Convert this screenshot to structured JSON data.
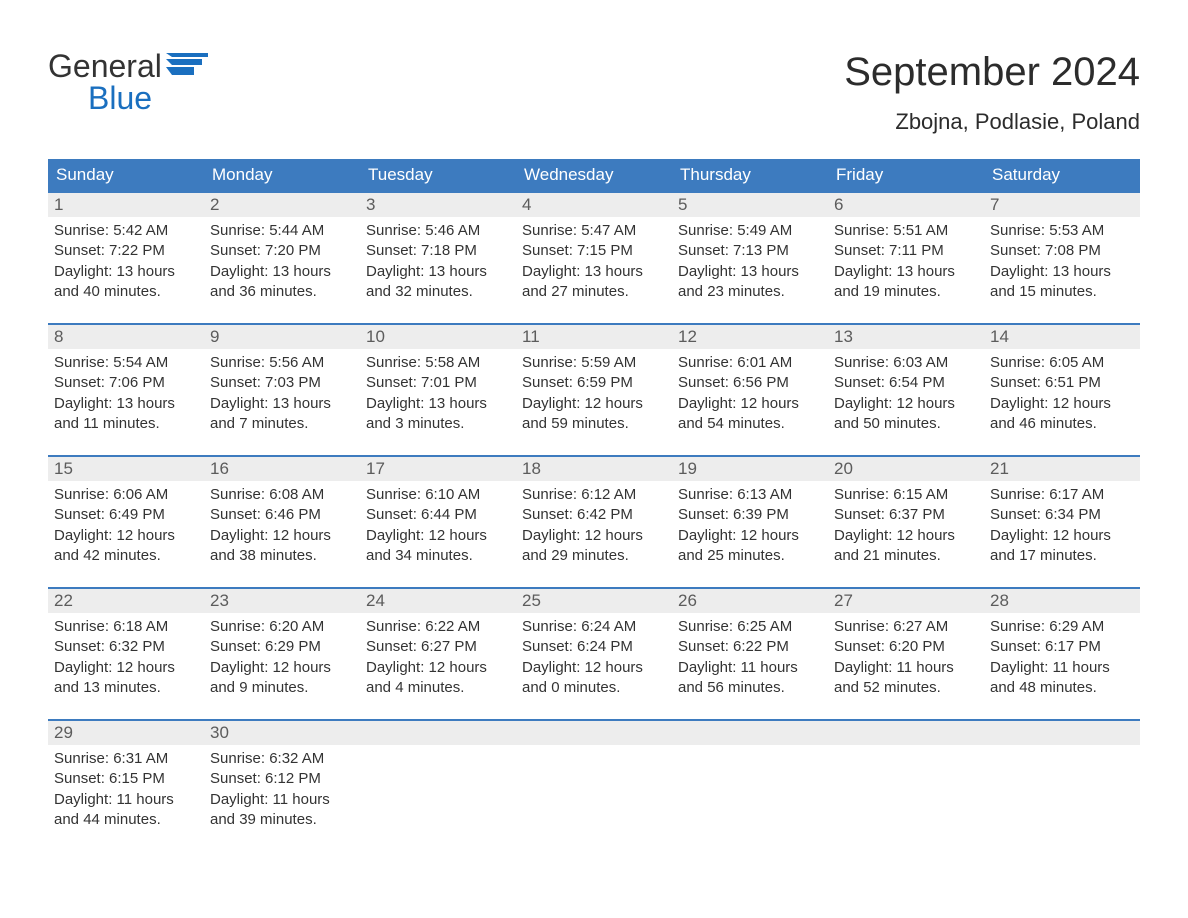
{
  "logo": {
    "word1": "General",
    "word2": "Blue",
    "icon_color": "#1a6fbf",
    "word1_color": "#333333",
    "word2_color": "#1a6fbf"
  },
  "title": "September 2024",
  "subtitle": "Zbojna, Podlasie, Poland",
  "colors": {
    "header_bg": "#3d7bbf",
    "header_fg": "#ffffff",
    "daynum_bg": "#ededed",
    "daynum_fg": "#5c5c5c",
    "body_text": "#333333",
    "week_border": "#3d7bbf",
    "page_bg": "#ffffff"
  },
  "weekdays": [
    "Sunday",
    "Monday",
    "Tuesday",
    "Wednesday",
    "Thursday",
    "Friday",
    "Saturday"
  ],
  "weeks": [
    [
      {
        "day": "1",
        "sunrise": "Sunrise: 5:42 AM",
        "sunset": "Sunset: 7:22 PM",
        "daylight": "Daylight: 13 hours and 40 minutes."
      },
      {
        "day": "2",
        "sunrise": "Sunrise: 5:44 AM",
        "sunset": "Sunset: 7:20 PM",
        "daylight": "Daylight: 13 hours and 36 minutes."
      },
      {
        "day": "3",
        "sunrise": "Sunrise: 5:46 AM",
        "sunset": "Sunset: 7:18 PM",
        "daylight": "Daylight: 13 hours and 32 minutes."
      },
      {
        "day": "4",
        "sunrise": "Sunrise: 5:47 AM",
        "sunset": "Sunset: 7:15 PM",
        "daylight": "Daylight: 13 hours and 27 minutes."
      },
      {
        "day": "5",
        "sunrise": "Sunrise: 5:49 AM",
        "sunset": "Sunset: 7:13 PM",
        "daylight": "Daylight: 13 hours and 23 minutes."
      },
      {
        "day": "6",
        "sunrise": "Sunrise: 5:51 AM",
        "sunset": "Sunset: 7:11 PM",
        "daylight": "Daylight: 13 hours and 19 minutes."
      },
      {
        "day": "7",
        "sunrise": "Sunrise: 5:53 AM",
        "sunset": "Sunset: 7:08 PM",
        "daylight": "Daylight: 13 hours and 15 minutes."
      }
    ],
    [
      {
        "day": "8",
        "sunrise": "Sunrise: 5:54 AM",
        "sunset": "Sunset: 7:06 PM",
        "daylight": "Daylight: 13 hours and 11 minutes."
      },
      {
        "day": "9",
        "sunrise": "Sunrise: 5:56 AM",
        "sunset": "Sunset: 7:03 PM",
        "daylight": "Daylight: 13 hours and 7 minutes."
      },
      {
        "day": "10",
        "sunrise": "Sunrise: 5:58 AM",
        "sunset": "Sunset: 7:01 PM",
        "daylight": "Daylight: 13 hours and 3 minutes."
      },
      {
        "day": "11",
        "sunrise": "Sunrise: 5:59 AM",
        "sunset": "Sunset: 6:59 PM",
        "daylight": "Daylight: 12 hours and 59 minutes."
      },
      {
        "day": "12",
        "sunrise": "Sunrise: 6:01 AM",
        "sunset": "Sunset: 6:56 PM",
        "daylight": "Daylight: 12 hours and 54 minutes."
      },
      {
        "day": "13",
        "sunrise": "Sunrise: 6:03 AM",
        "sunset": "Sunset: 6:54 PM",
        "daylight": "Daylight: 12 hours and 50 minutes."
      },
      {
        "day": "14",
        "sunrise": "Sunrise: 6:05 AM",
        "sunset": "Sunset: 6:51 PM",
        "daylight": "Daylight: 12 hours and 46 minutes."
      }
    ],
    [
      {
        "day": "15",
        "sunrise": "Sunrise: 6:06 AM",
        "sunset": "Sunset: 6:49 PM",
        "daylight": "Daylight: 12 hours and 42 minutes."
      },
      {
        "day": "16",
        "sunrise": "Sunrise: 6:08 AM",
        "sunset": "Sunset: 6:46 PM",
        "daylight": "Daylight: 12 hours and 38 minutes."
      },
      {
        "day": "17",
        "sunrise": "Sunrise: 6:10 AM",
        "sunset": "Sunset: 6:44 PM",
        "daylight": "Daylight: 12 hours and 34 minutes."
      },
      {
        "day": "18",
        "sunrise": "Sunrise: 6:12 AM",
        "sunset": "Sunset: 6:42 PM",
        "daylight": "Daylight: 12 hours and 29 minutes."
      },
      {
        "day": "19",
        "sunrise": "Sunrise: 6:13 AM",
        "sunset": "Sunset: 6:39 PM",
        "daylight": "Daylight: 12 hours and 25 minutes."
      },
      {
        "day": "20",
        "sunrise": "Sunrise: 6:15 AM",
        "sunset": "Sunset: 6:37 PM",
        "daylight": "Daylight: 12 hours and 21 minutes."
      },
      {
        "day": "21",
        "sunrise": "Sunrise: 6:17 AM",
        "sunset": "Sunset: 6:34 PM",
        "daylight": "Daylight: 12 hours and 17 minutes."
      }
    ],
    [
      {
        "day": "22",
        "sunrise": "Sunrise: 6:18 AM",
        "sunset": "Sunset: 6:32 PM",
        "daylight": "Daylight: 12 hours and 13 minutes."
      },
      {
        "day": "23",
        "sunrise": "Sunrise: 6:20 AM",
        "sunset": "Sunset: 6:29 PM",
        "daylight": "Daylight: 12 hours and 9 minutes."
      },
      {
        "day": "24",
        "sunrise": "Sunrise: 6:22 AM",
        "sunset": "Sunset: 6:27 PM",
        "daylight": "Daylight: 12 hours and 4 minutes."
      },
      {
        "day": "25",
        "sunrise": "Sunrise: 6:24 AM",
        "sunset": "Sunset: 6:24 PM",
        "daylight": "Daylight: 12 hours and 0 minutes."
      },
      {
        "day": "26",
        "sunrise": "Sunrise: 6:25 AM",
        "sunset": "Sunset: 6:22 PM",
        "daylight": "Daylight: 11 hours and 56 minutes."
      },
      {
        "day": "27",
        "sunrise": "Sunrise: 6:27 AM",
        "sunset": "Sunset: 6:20 PM",
        "daylight": "Daylight: 11 hours and 52 minutes."
      },
      {
        "day": "28",
        "sunrise": "Sunrise: 6:29 AM",
        "sunset": "Sunset: 6:17 PM",
        "daylight": "Daylight: 11 hours and 48 minutes."
      }
    ],
    [
      {
        "day": "29",
        "sunrise": "Sunrise: 6:31 AM",
        "sunset": "Sunset: 6:15 PM",
        "daylight": "Daylight: 11 hours and 44 minutes."
      },
      {
        "day": "30",
        "sunrise": "Sunrise: 6:32 AM",
        "sunset": "Sunset: 6:12 PM",
        "daylight": "Daylight: 11 hours and 39 minutes."
      },
      {
        "day": "",
        "sunrise": "",
        "sunset": "",
        "daylight": "",
        "empty": true
      },
      {
        "day": "",
        "sunrise": "",
        "sunset": "",
        "daylight": "",
        "empty": true
      },
      {
        "day": "",
        "sunrise": "",
        "sunset": "",
        "daylight": "",
        "empty": true
      },
      {
        "day": "",
        "sunrise": "",
        "sunset": "",
        "daylight": "",
        "empty": true
      },
      {
        "day": "",
        "sunrise": "",
        "sunset": "",
        "daylight": "",
        "empty": true
      }
    ]
  ]
}
